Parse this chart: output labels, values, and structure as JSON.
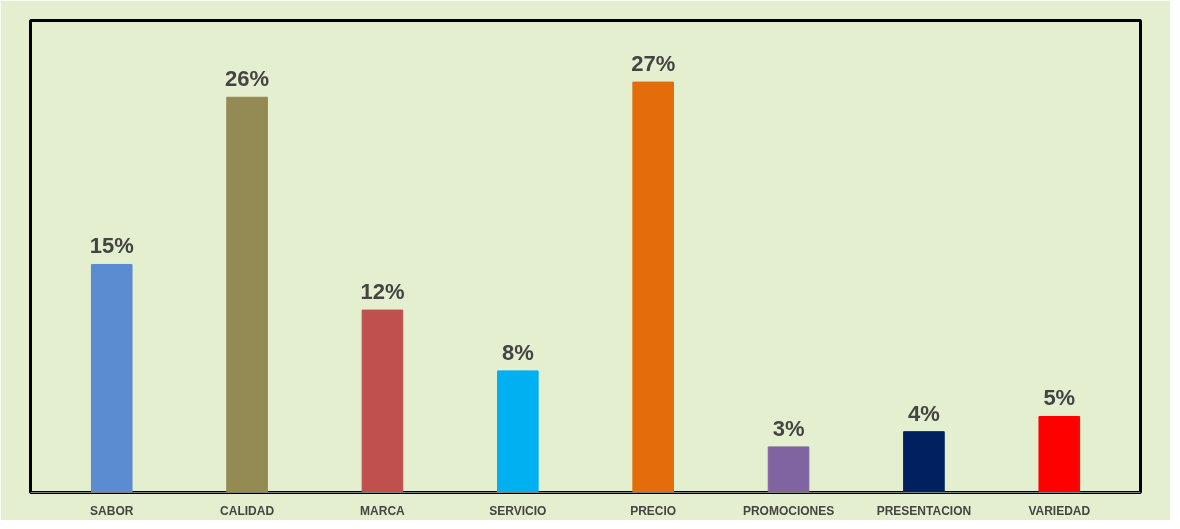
{
  "chart_data": {
    "type": "bar",
    "categories": [
      "SABOR",
      "CALIDAD",
      "MARCA",
      "SERVICIO",
      "PRECIO",
      "PROMOCIONES",
      "PRESENTACION",
      "VARIEDAD"
    ],
    "values": [
      15,
      26,
      12,
      8,
      27,
      3,
      4,
      5
    ],
    "colors": [
      "#5b8bd0",
      "#948a54",
      "#c0504d",
      "#00b0f0",
      "#e46c0a",
      "#8064a2",
      "#002060",
      "#ff0000"
    ],
    "value_labels": [
      "15%",
      "26%",
      "12%",
      "8%",
      "27%",
      "3%",
      "4%",
      "5%"
    ],
    "grid": false
  }
}
